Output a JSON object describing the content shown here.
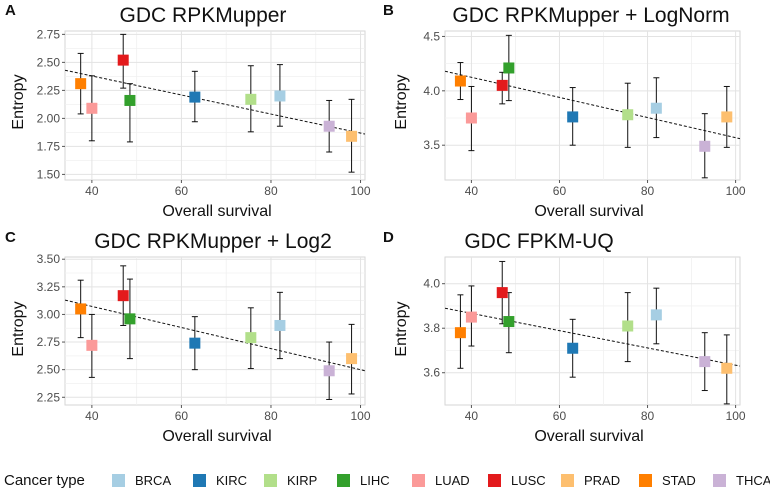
{
  "figure": {
    "legend_title": "Cancer type",
    "x_axis_label": "Overall survival",
    "y_axis_label": "Entropy"
  },
  "legend": [
    {
      "label": "BRCA",
      "color": "#a6cee3"
    },
    {
      "label": "KIRC",
      "color": "#1f78b4"
    },
    {
      "label": "KIRP",
      "color": "#b2df8a"
    },
    {
      "label": "LIHC",
      "color": "#33a02c"
    },
    {
      "label": "LUAD",
      "color": "#fb9a99"
    },
    {
      "label": "LUSC",
      "color": "#e31a1c"
    },
    {
      "label": "PRAD",
      "color": "#fdbf6f"
    },
    {
      "label": "STAD",
      "color": "#ff7f00"
    },
    {
      "label": "THCA",
      "color": "#cab2d6"
    }
  ],
  "chart_data": [
    {
      "type": "scatter",
      "panel": "A",
      "title": "GDC RPKMupper",
      "xlabel": "Overall survival",
      "ylabel": "Entropy",
      "xlim": [
        34,
        101
      ],
      "ylim": [
        1.45,
        2.78
      ],
      "x_ticks": [
        40,
        60,
        80,
        100
      ],
      "y_ticks": [
        1.5,
        1.75,
        2.0,
        2.25,
        2.5,
        2.75
      ],
      "y_tick_labels": [
        "1.50",
        "1.75",
        "2.00",
        "2.25",
        "2.50",
        "2.75"
      ],
      "trend_line": {
        "x": [
          34,
          101
        ],
        "y": [
          2.43,
          1.86
        ]
      },
      "points": [
        {
          "type": "STAD",
          "x": 37.5,
          "y": 2.31,
          "ymin": 2.04,
          "ymax": 2.58
        },
        {
          "type": "LUAD",
          "x": 40,
          "y": 2.09,
          "ymin": 1.8,
          "ymax": 2.38
        },
        {
          "type": "LUSC",
          "x": 47,
          "y": 2.52,
          "ymin": 2.27,
          "ymax": 2.75
        },
        {
          "type": "LIHC",
          "x": 48.5,
          "y": 2.16,
          "ymin": 1.79,
          "ymax": 2.31
        },
        {
          "type": "KIRC",
          "x": 63,
          "y": 2.19,
          "ymin": 1.97,
          "ymax": 2.42
        },
        {
          "type": "KIRP",
          "x": 75.5,
          "y": 2.17,
          "ymin": 1.88,
          "ymax": 2.47
        },
        {
          "type": "BRCA",
          "x": 82,
          "y": 2.2,
          "ymin": 1.93,
          "ymax": 2.48
        },
        {
          "type": "THCA",
          "x": 93,
          "y": 1.93,
          "ymin": 1.7,
          "ymax": 2.16
        },
        {
          "type": "PRAD",
          "x": 98,
          "y": 1.84,
          "ymin": 1.52,
          "ymax": 2.17
        }
      ]
    },
    {
      "type": "scatter",
      "panel": "B",
      "title": "GDC RPKMupper + LogNorm",
      "xlabel": "Overall survival",
      "ylabel": "Entropy",
      "xlim": [
        34,
        101
      ],
      "ylim": [
        3.18,
        4.55
      ],
      "x_ticks": [
        40,
        60,
        80,
        100
      ],
      "y_ticks": [
        3.5,
        4.0,
        4.5
      ],
      "y_tick_labels": [
        "3.5",
        "4.0",
        "4.5"
      ],
      "trend_line": {
        "x": [
          34,
          101
        ],
        "y": [
          4.18,
          3.56
        ]
      },
      "points": [
        {
          "type": "STAD",
          "x": 37.5,
          "y": 4.09,
          "ymin": 3.92,
          "ymax": 4.26
        },
        {
          "type": "LUAD",
          "x": 40,
          "y": 3.75,
          "ymin": 3.45,
          "ymax": 4.04
        },
        {
          "type": "LUSC",
          "x": 47,
          "y": 4.05,
          "ymin": 3.88,
          "ymax": 4.17
        },
        {
          "type": "LIHC",
          "x": 48.5,
          "y": 4.21,
          "ymin": 3.91,
          "ymax": 4.51
        },
        {
          "type": "KIRC",
          "x": 63,
          "y": 3.76,
          "ymin": 3.5,
          "ymax": 4.03
        },
        {
          "type": "KIRP",
          "x": 75.5,
          "y": 3.78,
          "ymin": 3.48,
          "ymax": 4.07
        },
        {
          "type": "BRCA",
          "x": 82,
          "y": 3.84,
          "ymin": 3.57,
          "ymax": 4.12
        },
        {
          "type": "THCA",
          "x": 93,
          "y": 3.49,
          "ymin": 3.2,
          "ymax": 3.79
        },
        {
          "type": "PRAD",
          "x": 98,
          "y": 3.76,
          "ymin": 3.48,
          "ymax": 4.04
        }
      ]
    },
    {
      "type": "scatter",
      "panel": "C",
      "title": "GDC RPKMupper + Log2",
      "xlabel": "Overall survival",
      "ylabel": "Entropy",
      "xlim": [
        34,
        101
      ],
      "ylim": [
        2.18,
        3.52
      ],
      "x_ticks": [
        40,
        60,
        80,
        100
      ],
      "y_ticks": [
        2.25,
        2.5,
        2.75,
        3.0,
        3.25,
        3.5
      ],
      "y_tick_labels": [
        "2.25",
        "2.50",
        "2.75",
        "3.00",
        "3.25",
        "3.50"
      ],
      "trend_line": {
        "x": [
          34,
          101
        ],
        "y": [
          3.13,
          2.49
        ]
      },
      "points": [
        {
          "type": "STAD",
          "x": 37.5,
          "y": 3.05,
          "ymin": 2.79,
          "ymax": 3.31
        },
        {
          "type": "LUAD",
          "x": 40,
          "y": 2.72,
          "ymin": 2.43,
          "ymax": 3.0
        },
        {
          "type": "LUSC",
          "x": 47,
          "y": 3.17,
          "ymin": 2.9,
          "ymax": 3.44
        },
        {
          "type": "LIHC",
          "x": 48.5,
          "y": 2.96,
          "ymin": 2.6,
          "ymax": 3.32
        },
        {
          "type": "KIRC",
          "x": 63,
          "y": 2.74,
          "ymin": 2.5,
          "ymax": 2.98
        },
        {
          "type": "KIRP",
          "x": 75.5,
          "y": 2.79,
          "ymin": 2.51,
          "ymax": 3.06
        },
        {
          "type": "BRCA",
          "x": 82,
          "y": 2.9,
          "ymin": 2.6,
          "ymax": 3.2
        },
        {
          "type": "THCA",
          "x": 93,
          "y": 2.49,
          "ymin": 2.23,
          "ymax": 2.75
        },
        {
          "type": "PRAD",
          "x": 98,
          "y": 2.6,
          "ymin": 2.28,
          "ymax": 2.91
        }
      ]
    },
    {
      "type": "scatter",
      "panel": "D",
      "title": "GDC FPKM-UQ",
      "xlabel": "Overall survival",
      "ylabel": "Entropy",
      "xlim": [
        34,
        101
      ],
      "ylim": [
        3.455,
        4.12
      ],
      "x_ticks": [
        40,
        60,
        80,
        100
      ],
      "y_ticks": [
        3.6,
        3.8,
        4.0
      ],
      "y_tick_labels": [
        "3.6",
        "3.8",
        "4.0"
      ],
      "trend_line": {
        "x": [
          34,
          101
        ],
        "y": [
          3.89,
          3.63
        ]
      },
      "points": [
        {
          "type": "STAD",
          "x": 37.5,
          "y": 3.78,
          "ymin": 3.62,
          "ymax": 3.95
        },
        {
          "type": "LUAD",
          "x": 40,
          "y": 3.85,
          "ymin": 3.72,
          "ymax": 3.99
        },
        {
          "type": "LUSC",
          "x": 47,
          "y": 3.96,
          "ymin": 3.82,
          "ymax": 4.1
        },
        {
          "type": "LIHC",
          "x": 48.5,
          "y": 3.83,
          "ymin": 3.69,
          "ymax": 3.96
        },
        {
          "type": "KIRC",
          "x": 63,
          "y": 3.71,
          "ymin": 3.58,
          "ymax": 3.84
        },
        {
          "type": "KIRP",
          "x": 75.5,
          "y": 3.81,
          "ymin": 3.65,
          "ymax": 3.96
        },
        {
          "type": "BRCA",
          "x": 82,
          "y": 3.86,
          "ymin": 3.73,
          "ymax": 3.98
        },
        {
          "type": "THCA",
          "x": 93,
          "y": 3.65,
          "ymin": 3.52,
          "ymax": 3.78
        },
        {
          "type": "PRAD",
          "x": 98,
          "y": 3.62,
          "ymin": 3.46,
          "ymax": 3.77
        }
      ]
    }
  ]
}
